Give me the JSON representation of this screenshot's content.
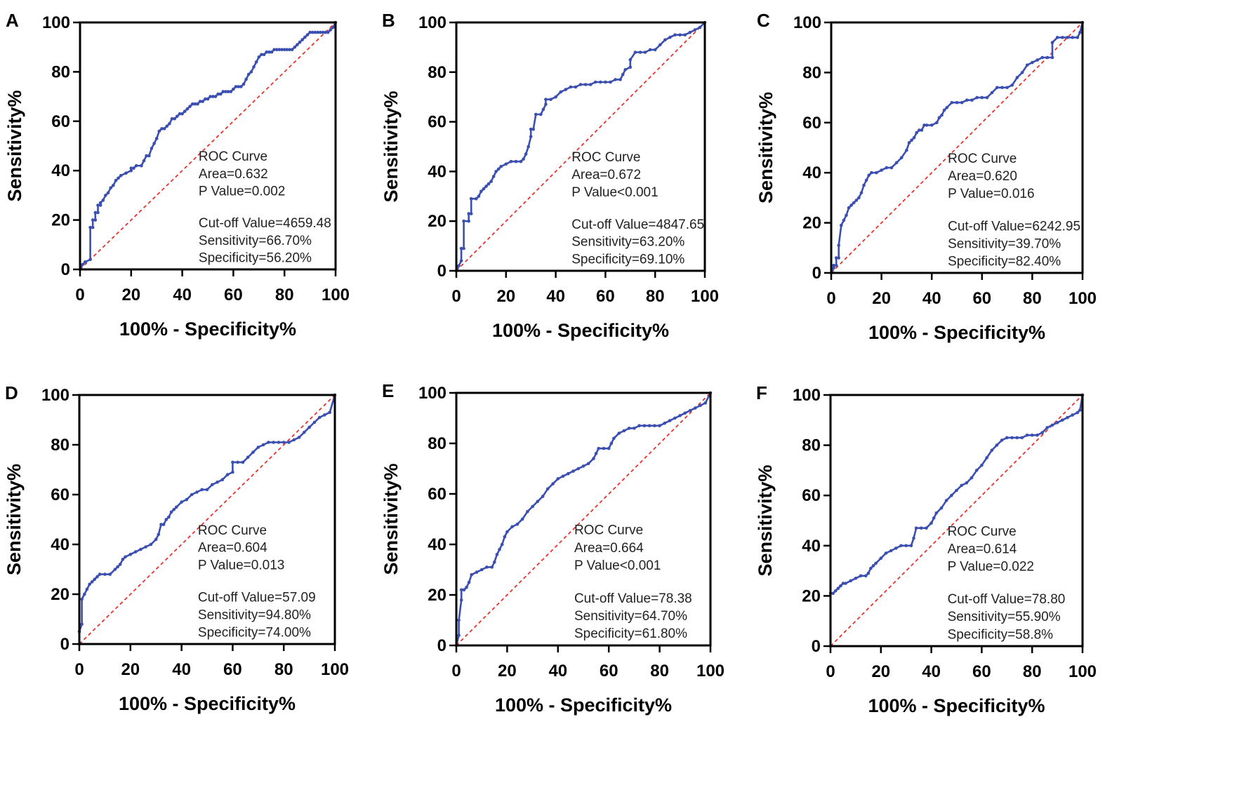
{
  "chart_data": [
    {
      "panel": "A",
      "type": "line",
      "xlabel": "100% - Specificity%",
      "ylabel": "Sensitivity%",
      "xlim": [
        0,
        100
      ],
      "ylim": [
        0,
        100
      ],
      "xticks": [
        "0",
        "20",
        "40",
        "60",
        "80",
        "100"
      ],
      "yticks": [
        "0",
        "20",
        "40",
        "60",
        "80",
        "100"
      ],
      "legend": [
        "ROC Curve",
        "Area=0.632",
        "P Value=0.002",
        "Cut-off Value=4659.48",
        "Sensitivity=66.70%",
        "Specificity=56.20%"
      ],
      "series": [
        {
          "name": "ROC Curve",
          "x": [
            0,
            1,
            2,
            4,
            4,
            5,
            5,
            6,
            6,
            7,
            7,
            8,
            8,
            9,
            10,
            11,
            12,
            13,
            14,
            15,
            16,
            18,
            20,
            20,
            21,
            22,
            24,
            25,
            26,
            27,
            28,
            29,
            30,
            31,
            32,
            33,
            34,
            35,
            36,
            37,
            38,
            39,
            40,
            41,
            42,
            43,
            44,
            45,
            46,
            47,
            48,
            49,
            50,
            51,
            52,
            53,
            54,
            55,
            56,
            57,
            58,
            59,
            60,
            61,
            62,
            63,
            64,
            65,
            66,
            67,
            68,
            69,
            70,
            71,
            72,
            73,
            74,
            75,
            76,
            77,
            78,
            79,
            80,
            81,
            82,
            83,
            84,
            85,
            86,
            87,
            88,
            89,
            90,
            91,
            92,
            93,
            94,
            95,
            96,
            97,
            98,
            99,
            100
          ],
          "y": [
            0,
            2,
            3,
            4,
            17,
            17,
            20,
            20,
            23,
            23,
            26,
            26,
            27,
            28,
            30,
            31,
            33,
            34,
            36,
            37,
            38,
            39,
            40,
            41,
            41,
            42,
            42,
            44,
            46,
            46,
            49,
            51,
            53,
            56,
            57,
            57,
            58,
            59,
            61,
            61,
            62,
            63,
            63,
            64,
            65,
            66,
            67,
            67,
            67,
            68,
            68,
            69,
            69,
            70,
            70,
            70,
            71,
            71,
            72,
            72,
            72,
            72,
            73,
            74,
            74,
            74,
            75,
            77,
            79,
            80,
            82,
            84,
            86,
            87,
            87,
            88,
            88,
            88,
            89,
            89,
            89,
            89,
            89,
            89,
            89,
            89,
            90,
            91,
            92,
            93,
            94,
            95,
            96,
            96,
            96,
            96,
            96,
            96,
            96,
            96,
            97,
            98,
            100
          ]
        }
      ]
    },
    {
      "panel": "B",
      "type": "line",
      "xlabel": "100% - Specificity%",
      "ylabel": "Sensitivity%",
      "xlim": [
        0,
        100
      ],
      "ylim": [
        0,
        100
      ],
      "xticks": [
        "0",
        "20",
        "40",
        "60",
        "80",
        "100"
      ],
      "yticks": [
        "0",
        "20",
        "40",
        "60",
        "80",
        "100"
      ],
      "legend": [
        "ROC Curve",
        "Area=0.672",
        "P Value<0.001",
        "Cut-off Value=4847.65",
        "Sensitivity=63.20%",
        "Specificity=69.10%"
      ],
      "series": [
        {
          "name": "ROC Curve",
          "x": [
            0,
            1,
            2,
            2,
            3,
            3,
            5,
            5,
            6,
            6,
            8,
            9,
            10,
            11,
            12,
            13,
            14,
            15,
            16,
            17,
            18,
            20,
            22,
            24,
            26,
            27,
            28,
            29,
            30,
            30,
            31,
            32,
            34,
            35,
            36,
            36,
            38,
            40,
            42,
            44,
            46,
            48,
            50,
            52,
            54,
            56,
            58,
            60,
            62,
            64,
            66,
            67,
            68,
            70,
            70,
            72,
            74,
            76,
            78,
            80,
            82,
            84,
            86,
            88,
            90,
            92,
            94,
            96,
            98,
            100
          ],
          "y": [
            0,
            2,
            4,
            9,
            9,
            20,
            20,
            23,
            23,
            29,
            29,
            30,
            32,
            33,
            34,
            35,
            36,
            38,
            40,
            41,
            42,
            43,
            44,
            44,
            44,
            45,
            47,
            50,
            54,
            57,
            57,
            63,
            63,
            65,
            67,
            69,
            69,
            70,
            72,
            73,
            74,
            74,
            75,
            75,
            75,
            76,
            76,
            76,
            76,
            77,
            77,
            79,
            81,
            82,
            85,
            88,
            88,
            88,
            89,
            89,
            91,
            93,
            94,
            95,
            95,
            95,
            96,
            97,
            98,
            100
          ]
        }
      ]
    },
    {
      "panel": "C",
      "type": "line",
      "xlabel": "100% - Specificity%",
      "ylabel": "Sensitivity%",
      "xlim": [
        0,
        100
      ],
      "ylim": [
        0,
        100
      ],
      "xticks": [
        "0",
        "20",
        "40",
        "60",
        "80",
        "100"
      ],
      "yticks": [
        "0",
        "20",
        "40",
        "60",
        "80",
        "100"
      ],
      "legend": [
        "ROC Curve",
        "Area=0.620",
        "P Value=0.016",
        "Cut-off Value=6242.95",
        "Sensitivity=39.70%",
        "Specificity=82.40%"
      ],
      "series": [
        {
          "name": "ROC Curve",
          "x": [
            0,
            1,
            1,
            2,
            2,
            3,
            3,
            4,
            5,
            6,
            7,
            8,
            9,
            10,
            11,
            12,
            13,
            14,
            15,
            16,
            18,
            20,
            22,
            24,
            26,
            28,
            30,
            31,
            32,
            33,
            34,
            35,
            36,
            37,
            38,
            40,
            42,
            43,
            44,
            45,
            46,
            48,
            50,
            52,
            54,
            56,
            58,
            60,
            62,
            64,
            66,
            68,
            70,
            72,
            74,
            76,
            78,
            80,
            82,
            84,
            86,
            88,
            88,
            90,
            92,
            94,
            96,
            98,
            99,
            100
          ],
          "y": [
            0,
            2,
            3,
            3,
            6,
            6,
            11,
            19,
            21,
            23,
            26,
            27,
            28,
            29,
            30,
            32,
            35,
            37,
            39,
            40,
            40,
            41,
            42,
            42,
            44,
            46,
            49,
            52,
            53,
            54,
            56,
            57,
            57,
            59,
            59,
            59,
            60,
            62,
            63,
            65,
            66,
            68,
            68,
            68,
            69,
            69,
            70,
            70,
            70,
            72,
            74,
            74,
            74,
            75,
            78,
            80,
            83,
            84,
            85,
            86,
            86,
            86,
            92,
            94,
            94,
            94,
            94,
            94,
            96,
            100
          ]
        }
      ]
    },
    {
      "panel": "D",
      "type": "line",
      "xlabel": "100% - Specificity%",
      "ylabel": "Sensitivity%",
      "xlim": [
        0,
        100
      ],
      "ylim": [
        0,
        100
      ],
      "xticks": [
        "0",
        "20",
        "40",
        "60",
        "80",
        "100"
      ],
      "yticks": [
        "0",
        "20",
        "40",
        "60",
        "80",
        "100"
      ],
      "legend": [
        "ROC Curve",
        "Area=0.604",
        "P Value=0.013",
        "Cut-off Value=57.09",
        "Sensitivity=94.80%",
        "Specificity=74.00%"
      ],
      "series": [
        {
          "name": "ROC Curve",
          "x": [
            0,
            0,
            1,
            1,
            2,
            3,
            4,
            5,
            6,
            7,
            8,
            10,
            12,
            14,
            15,
            16,
            17,
            18,
            20,
            22,
            24,
            26,
            28,
            30,
            31,
            32,
            33,
            34,
            35,
            36,
            37,
            38,
            40,
            42,
            44,
            46,
            48,
            50,
            52,
            54,
            56,
            58,
            60,
            60,
            62,
            64,
            66,
            68,
            70,
            72,
            74,
            76,
            78,
            80,
            82,
            84,
            86,
            88,
            90,
            92,
            94,
            96,
            98,
            98,
            100
          ],
          "y": [
            0,
            5,
            8,
            18,
            20,
            22,
            24,
            25,
            26,
            27,
            28,
            28,
            28,
            30,
            31,
            32,
            34,
            35,
            36,
            37,
            38,
            39,
            40,
            42,
            44,
            48,
            48,
            50,
            51,
            53,
            54,
            55,
            57,
            58,
            60,
            61,
            62,
            62,
            64,
            65,
            66,
            68,
            69,
            73,
            73,
            73,
            75,
            77,
            79,
            80,
            81,
            81,
            81,
            81,
            81,
            82,
            83,
            85,
            87,
            89,
            91,
            92,
            93,
            93,
            100
          ]
        }
      ]
    },
    {
      "panel": "E",
      "type": "line",
      "xlabel": "100% - Specificity%",
      "ylabel": "Sensitivity%",
      "xlim": [
        0,
        100
      ],
      "ylim": [
        0,
        100
      ],
      "xticks": [
        "0",
        "20",
        "40",
        "60",
        "80",
        "100"
      ],
      "yticks": [
        "0",
        "20",
        "40",
        "60",
        "80",
        "100"
      ],
      "legend": [
        "ROC Curve",
        "Area=0.664",
        "P Value<0.001",
        "Cut-off Value=78.38",
        "Sensitivity=64.70%",
        "Specificity=61.80%"
      ],
      "series": [
        {
          "name": "ROC Curve",
          "x": [
            0,
            1,
            1,
            2,
            2,
            3,
            4,
            5,
            6,
            8,
            10,
            12,
            14,
            15,
            16,
            17,
            18,
            19,
            20,
            22,
            24,
            26,
            28,
            30,
            32,
            34,
            36,
            38,
            40,
            42,
            44,
            46,
            48,
            50,
            52,
            54,
            55,
            56,
            58,
            60,
            61,
            62,
            64,
            66,
            68,
            70,
            72,
            74,
            76,
            78,
            80,
            82,
            84,
            86,
            88,
            90,
            92,
            94,
            96,
            98,
            100
          ],
          "y": [
            0,
            4,
            10,
            18,
            22,
            22,
            23,
            25,
            28,
            29,
            30,
            31,
            31,
            33,
            36,
            38,
            40,
            43,
            45,
            47,
            48,
            50,
            53,
            55,
            57,
            59,
            62,
            64,
            66,
            67,
            68,
            69,
            70,
            71,
            72,
            74,
            76,
            78,
            78,
            78,
            80,
            82,
            84,
            85,
            86,
            86,
            87,
            87,
            87,
            87,
            87,
            88,
            89,
            90,
            91,
            92,
            93,
            94,
            95,
            96,
            100
          ]
        }
      ]
    },
    {
      "panel": "F",
      "type": "line",
      "xlabel": "100% - Specificity%",
      "ylabel": "Sensitivity%",
      "xlim": [
        0,
        100
      ],
      "ylim": [
        0,
        100
      ],
      "xticks": [
        "0",
        "20",
        "40",
        "60",
        "80",
        "100"
      ],
      "yticks": [
        "0",
        "20",
        "40",
        "60",
        "80",
        "100"
      ],
      "legend": [
        "ROC Curve",
        "Area=0.614",
        "P Value=0.022",
        "Cut-off Value=78.80",
        "Sensitivity=55.90%",
        "Specificity=58.8%"
      ],
      "series": [
        {
          "name": "ROC Curve",
          "x": [
            0,
            0,
            1,
            2,
            3,
            4,
            5,
            6,
            8,
            10,
            12,
            14,
            15,
            16,
            17,
            18,
            20,
            22,
            24,
            26,
            28,
            30,
            32,
            33,
            34,
            36,
            38,
            40,
            41,
            42,
            44,
            46,
            48,
            50,
            52,
            54,
            56,
            58,
            60,
            62,
            64,
            66,
            68,
            70,
            72,
            74,
            76,
            78,
            80,
            82,
            84,
            86,
            88,
            90,
            92,
            94,
            96,
            98,
            99,
            100
          ],
          "y": [
            0,
            21,
            21,
            22,
            23,
            24,
            25,
            25,
            26,
            27,
            28,
            28,
            29,
            31,
            32,
            33,
            35,
            37,
            38,
            39,
            40,
            40,
            40,
            43,
            47,
            47,
            47,
            49,
            51,
            53,
            55,
            58,
            60,
            62,
            64,
            65,
            67,
            70,
            72,
            75,
            78,
            80,
            82,
            83,
            83,
            83,
            83,
            84,
            84,
            84,
            85,
            87,
            88,
            89,
            90,
            91,
            92,
            93,
            94,
            100
          ]
        }
      ]
    }
  ]
}
